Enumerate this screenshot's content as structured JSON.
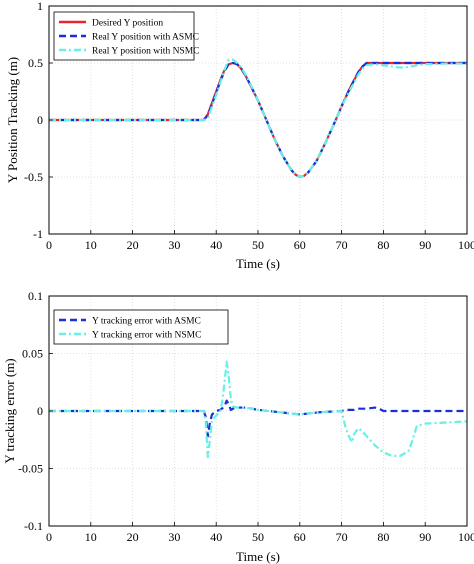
{
  "chart_data": [
    {
      "type": "line",
      "xlabel": "Time (s)",
      "ylabel": "Y Position Tracking (m)",
      "xlim": [
        0,
        100
      ],
      "ylim": [
        -1,
        1
      ],
      "xticks": [
        "0",
        "10",
        "20",
        "30",
        "40",
        "50",
        "60",
        "70",
        "80",
        "90",
        "100"
      ],
      "yticks": [
        "-1",
        "-0.5",
        "0",
        "0.5",
        "1"
      ],
      "grid": true,
      "legend": "top-left",
      "series": [
        {
          "name": "Desired Y position",
          "color": "#e8262a",
          "style": "solid",
          "x": [
            0,
            36,
            37,
            38,
            39,
            40,
            41,
            42,
            43,
            44,
            45,
            46,
            47,
            48,
            50,
            52,
            54,
            56,
            58,
            59,
            60,
            61,
            62,
            64,
            66,
            68,
            70,
            72,
            74,
            75,
            76,
            78,
            80,
            85,
            90,
            95,
            100
          ],
          "y": [
            0,
            0,
            0,
            0.05,
            0.15,
            0.25,
            0.35,
            0.44,
            0.49,
            0.5,
            0.49,
            0.45,
            0.39,
            0.32,
            0.17,
            0,
            -0.17,
            -0.32,
            -0.44,
            -0.48,
            -0.5,
            -0.49,
            -0.46,
            -0.36,
            -0.21,
            -0.05,
            0.12,
            0.28,
            0.42,
            0.47,
            0.5,
            0.5,
            0.5,
            0.5,
            0.5,
            0.5,
            0.5
          ]
        },
        {
          "name": "Real Y position with ASMC",
          "color": "#1a2fd6",
          "style": "dashed",
          "x": [
            0,
            36,
            37,
            38,
            39,
            40,
            41,
            42,
            43,
            44,
            45,
            46,
            47,
            48,
            50,
            52,
            54,
            56,
            58,
            59,
            60,
            61,
            62,
            64,
            66,
            68,
            70,
            72,
            74,
            75,
            76,
            78,
            80,
            85,
            90,
            95,
            100
          ],
          "y": [
            0,
            0,
            0,
            0.04,
            0.14,
            0.24,
            0.34,
            0.43,
            0.49,
            0.5,
            0.49,
            0.45,
            0.39,
            0.32,
            0.17,
            0,
            -0.17,
            -0.32,
            -0.44,
            -0.48,
            -0.5,
            -0.49,
            -0.46,
            -0.36,
            -0.21,
            -0.05,
            0.12,
            0.28,
            0.42,
            0.47,
            0.5,
            0.5,
            0.5,
            0.5,
            0.5,
            0.5,
            0.5
          ]
        },
        {
          "name": "Real Y position with NSMC",
          "color": "#66f0e6",
          "style": "dashdot",
          "x": [
            0,
            36,
            37,
            38,
            39,
            40,
            41,
            42,
            43,
            44,
            45,
            46,
            47,
            48,
            50,
            52,
            54,
            56,
            58,
            59,
            60,
            61,
            62,
            64,
            66,
            68,
            70,
            72,
            74,
            75,
            76,
            78,
            80,
            82,
            84,
            86,
            88,
            90,
            95,
            100
          ],
          "y": [
            0,
            0,
            0,
            0.01,
            0.12,
            0.22,
            0.33,
            0.44,
            0.53,
            0.53,
            0.5,
            0.46,
            0.4,
            0.33,
            0.17,
            0,
            -0.17,
            -0.32,
            -0.44,
            -0.48,
            -0.5,
            -0.49,
            -0.46,
            -0.36,
            -0.21,
            -0.05,
            0.12,
            0.26,
            0.4,
            0.45,
            0.48,
            0.49,
            0.48,
            0.47,
            0.46,
            0.465,
            0.48,
            0.49,
            0.495,
            0.495
          ]
        }
      ]
    },
    {
      "type": "line",
      "xlabel": "Time (s)",
      "ylabel": "Y tracking error (m)",
      "xlim": [
        0,
        100
      ],
      "ylim": [
        -0.1,
        0.1
      ],
      "xticks": [
        "0",
        "10",
        "20",
        "30",
        "40",
        "50",
        "60",
        "70",
        "80",
        "90",
        "100"
      ],
      "yticks": [
        "-0.1",
        "-0.05",
        "0",
        "0.05",
        "0.1"
      ],
      "grid": true,
      "legend": "top-left",
      "series": [
        {
          "name": "Y tracking error with ASMC",
          "color": "#1a2fd6",
          "style": "dashed",
          "x": [
            0,
            36,
            37,
            37.5,
            38,
            38.5,
            39,
            40,
            41,
            42,
            42.5,
            43,
            43.5,
            44,
            45,
            47,
            50,
            55,
            60,
            65,
            70,
            71,
            72,
            73,
            74,
            76,
            78,
            79,
            80,
            85,
            90,
            95,
            100
          ],
          "y": [
            0,
            0,
            0,
            -0.005,
            -0.022,
            -0.01,
            -0.003,
            0,
            0.001,
            0.004,
            0.009,
            0.006,
            0.001,
            0.002,
            0.003,
            0.003,
            0.001,
            -0.001,
            -0.003,
            -0.001,
            0,
            0.001,
            0.001,
            0.001,
            0.002,
            0.002,
            0.003,
            0.002,
            0,
            0,
            0,
            0,
            0
          ]
        },
        {
          "name": "Y tracking error with NSMC",
          "color": "#66f0e6",
          "style": "dashdot",
          "x": [
            0,
            36,
            37,
            37.5,
            38,
            38.5,
            39,
            40,
            41,
            41.5,
            42,
            42.5,
            43,
            43.5,
            44,
            45,
            47,
            50,
            55,
            60,
            65,
            70,
            71,
            72,
            72.5,
            73,
            74,
            75,
            76,
            78,
            80,
            82,
            84,
            86,
            87,
            88,
            90,
            95,
            100
          ],
          "y": [
            0,
            0,
            0,
            -0.01,
            -0.04,
            -0.025,
            -0.008,
            -0.004,
            0,
            0.01,
            0.025,
            0.043,
            0.03,
            0.01,
            0.004,
            0.003,
            0.003,
            0.001,
            -0.001,
            -0.003,
            -0.001,
            0,
            -0.015,
            -0.024,
            -0.027,
            -0.02,
            -0.015,
            -0.018,
            -0.022,
            -0.03,
            -0.036,
            -0.039,
            -0.039,
            -0.035,
            -0.025,
            -0.013,
            -0.011,
            -0.01,
            -0.009
          ]
        }
      ]
    }
  ]
}
